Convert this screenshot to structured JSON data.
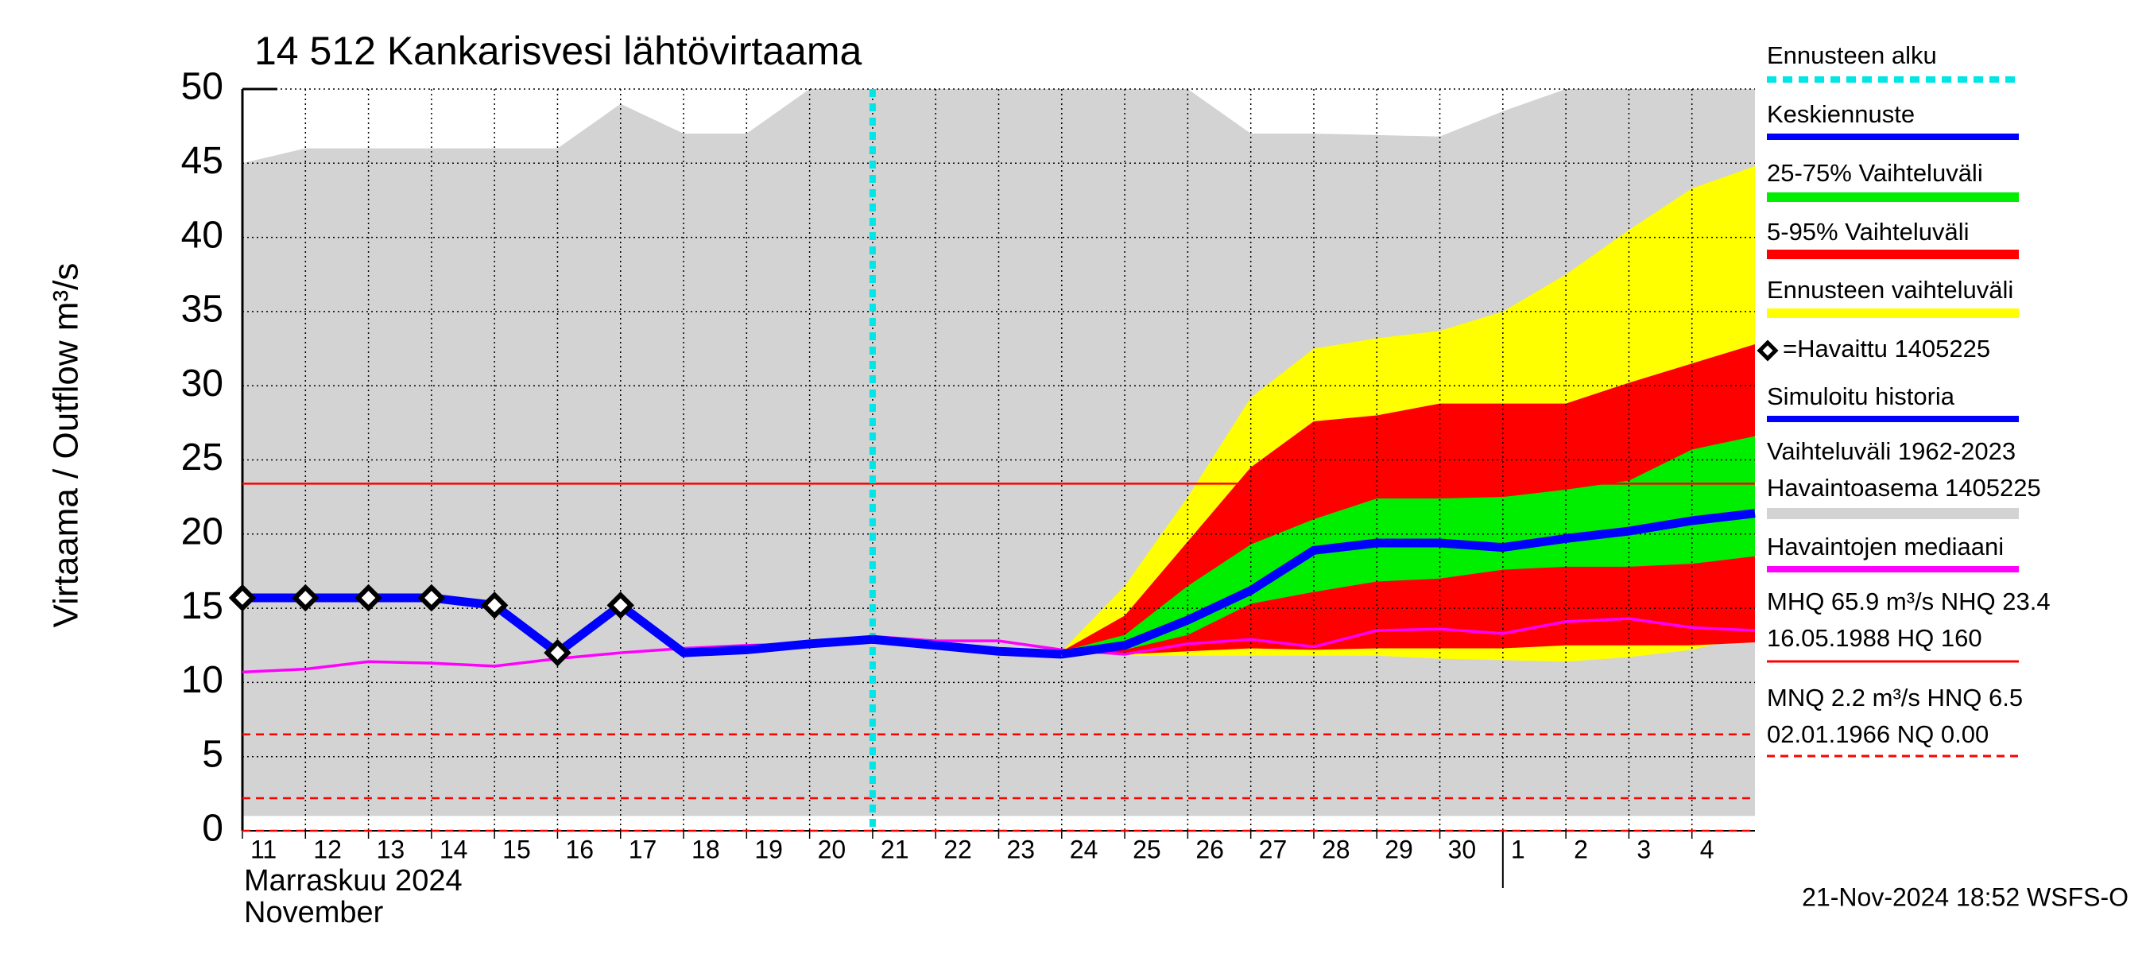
{
  "chart_data": {
    "type": "hydrograph",
    "title": "14 512 Kankarisvesi lähtövirtaama",
    "ylabel": "Virtaama / Outflow     m³/s",
    "xlabel": [
      "Marraskuu 2024",
      "November"
    ],
    "footer": "21-Nov-2024 18:52 WSFS-O",
    "xlim": [
      0,
      24
    ],
    "ylim": [
      0,
      50
    ],
    "yticks": [
      0,
      5,
      10,
      15,
      20,
      25,
      30,
      35,
      40,
      45,
      50
    ],
    "xticks": [
      {
        "value": 0,
        "label": "11"
      },
      {
        "value": 1,
        "label": "12"
      },
      {
        "value": 2,
        "label": "13"
      },
      {
        "value": 3,
        "label": "14"
      },
      {
        "value": 4,
        "label": "15"
      },
      {
        "value": 5,
        "label": "16"
      },
      {
        "value": 6,
        "label": "17"
      },
      {
        "value": 7,
        "label": "18"
      },
      {
        "value": 8,
        "label": "19"
      },
      {
        "value": 9,
        "label": "20"
      },
      {
        "value": 10,
        "label": "21"
      },
      {
        "value": 11,
        "label": "22"
      },
      {
        "value": 12,
        "label": "23"
      },
      {
        "value": 13,
        "label": "24"
      },
      {
        "value": 14,
        "label": "25"
      },
      {
        "value": 15,
        "label": "26"
      },
      {
        "value": 16,
        "label": "27"
      },
      {
        "value": 17,
        "label": "28"
      },
      {
        "value": 18,
        "label": "29"
      },
      {
        "value": 19,
        "label": "30"
      },
      {
        "value": 20,
        "label": "1"
      },
      {
        "value": 21,
        "label": "2"
      },
      {
        "value": 22,
        "label": "3"
      },
      {
        "value": 23,
        "label": "4"
      }
    ],
    "month_start": 20,
    "grid": true,
    "series": [
      {
        "name": "Ennusteen alku",
        "color": "#00e5e5",
        "kind": "vline",
        "style": "dotted",
        "x": [
          10
        ]
      },
      {
        "name": "Keskiennuste",
        "color": "#0000ff",
        "kind": "line",
        "style": "thick",
        "x": [
          13,
          14,
          15,
          16,
          17,
          18,
          19,
          20,
          21,
          22,
          23,
          24
        ],
        "values": [
          11.9,
          12.5,
          14.2,
          16.2,
          18.9,
          19.4,
          19.4,
          19.1,
          19.7,
          20.2,
          20.9,
          21.4
        ]
      },
      {
        "name": "25-75% Vaihteluväli",
        "color": "#00ee00",
        "kind": "band",
        "x": [
          13,
          14,
          15,
          16,
          17,
          18,
          19,
          20,
          21,
          22,
          23,
          24
        ],
        "upper": [
          12.1,
          13.2,
          16.5,
          19.3,
          21.0,
          22.4,
          22.4,
          22.5,
          23.0,
          23.6,
          25.7,
          26.6
        ],
        "lower": [
          12.1,
          12.2,
          13.2,
          15.3,
          16.1,
          16.8,
          17.0,
          17.6,
          17.8,
          17.8,
          18.0,
          18.5
        ]
      },
      {
        "name": "5-95% Vaihteluväli",
        "color": "#ff0000",
        "kind": "band",
        "x": [
          13,
          14,
          15,
          16,
          17,
          18,
          19,
          20,
          21,
          22,
          23,
          24
        ],
        "upper": [
          12.1,
          14.5,
          19.5,
          24.5,
          27.6,
          28.0,
          28.8,
          28.8,
          28.8,
          30.2,
          31.5,
          32.8
        ],
        "lower": [
          12.1,
          11.9,
          12.1,
          12.3,
          12.2,
          12.3,
          12.3,
          12.3,
          12.5,
          12.5,
          12.5,
          12.7
        ]
      },
      {
        "name": "Ennusteen vaihteluväli",
        "color": "#ffff00",
        "kind": "band",
        "x": [
          13,
          14,
          15,
          16,
          17,
          18,
          19,
          20,
          21,
          22,
          23,
          24
        ],
        "upper": [
          12.1,
          16.5,
          22.5,
          29.2,
          32.5,
          33.2,
          33.7,
          35.0,
          37.5,
          40.5,
          43.3,
          44.8
        ],
        "lower": [
          12.1,
          11.8,
          11.8,
          11.8,
          11.8,
          11.8,
          11.6,
          11.5,
          11.4,
          11.7,
          12.2,
          13.2
        ]
      },
      {
        "name": "=Havaittu 1405225",
        "color": "#000000",
        "kind": "markers",
        "x": [
          0,
          1,
          2,
          3,
          4,
          5,
          6
        ],
        "values": [
          15.7,
          15.7,
          15.7,
          15.7,
          15.2,
          12.0,
          15.2
        ]
      },
      {
        "name": "Simuloitu historia",
        "color": "#0000ff",
        "kind": "line",
        "style": "thick",
        "x": [
          0,
          1,
          2,
          3,
          4,
          5,
          6,
          7,
          8,
          9,
          10,
          11,
          12,
          13
        ],
        "values": [
          15.7,
          15.7,
          15.7,
          15.7,
          15.2,
          12.0,
          15.2,
          12.0,
          12.2,
          12.6,
          12.9,
          12.5,
          12.1,
          11.9
        ]
      },
      {
        "name": [
          "Vaihteluväli 1962-2023",
          " Havaintoasema 1405225"
        ],
        "color": "#d3d3d3",
        "kind": "band",
        "x": [
          0,
          1,
          2,
          3,
          4,
          5,
          6,
          7,
          8,
          9,
          10,
          11,
          12,
          13,
          14,
          15,
          16,
          17,
          18,
          19,
          20,
          21,
          22,
          23,
          24
        ],
        "upper": [
          45,
          46,
          46,
          46,
          46,
          46,
          49,
          47,
          47,
          50,
          50,
          50,
          50,
          50,
          50,
          50,
          47,
          47,
          46.9,
          46.8,
          48.5,
          50,
          50,
          50,
          50
        ],
        "lower": [
          1,
          1,
          1,
          1,
          1,
          1,
          1,
          1,
          1,
          1,
          1,
          1,
          1,
          1,
          1,
          1,
          1,
          1,
          1,
          1,
          1,
          1,
          1,
          1,
          1
        ]
      },
      {
        "name": "Havaintojen mediaani",
        "color": "#ff00ff",
        "kind": "line",
        "style": "thin",
        "x": [
          0,
          1,
          2,
          3,
          4,
          5,
          6,
          7,
          8,
          9,
          10,
          11,
          12,
          13,
          14,
          15,
          16,
          17,
          18,
          19,
          20,
          21,
          22,
          23,
          24
        ],
        "values": [
          10.7,
          10.9,
          11.4,
          11.3,
          11.1,
          11.6,
          12.0,
          12.3,
          12.5,
          12.6,
          13.1,
          12.8,
          12.8,
          12.2,
          11.9,
          12.6,
          12.9,
          12.4,
          13.5,
          13.6,
          13.3,
          14.1,
          14.3,
          13.7,
          13.5
        ]
      },
      {
        "name": [
          "MHQ 65.9 m³/s NHQ 23.4",
          "16.05.1988 HQ  160"
        ],
        "color": "#ff0000",
        "kind": "hline",
        "style": "solid",
        "values": [
          23.4
        ]
      },
      {
        "name": [
          "MNQ  2.2 m³/s HNQ  6.5",
          "02.01.1966 NQ 0.00"
        ],
        "color": "#ff0000",
        "kind": "hline",
        "style": "dashed",
        "values": [
          6.5,
          2.2,
          0
        ]
      }
    ]
  }
}
